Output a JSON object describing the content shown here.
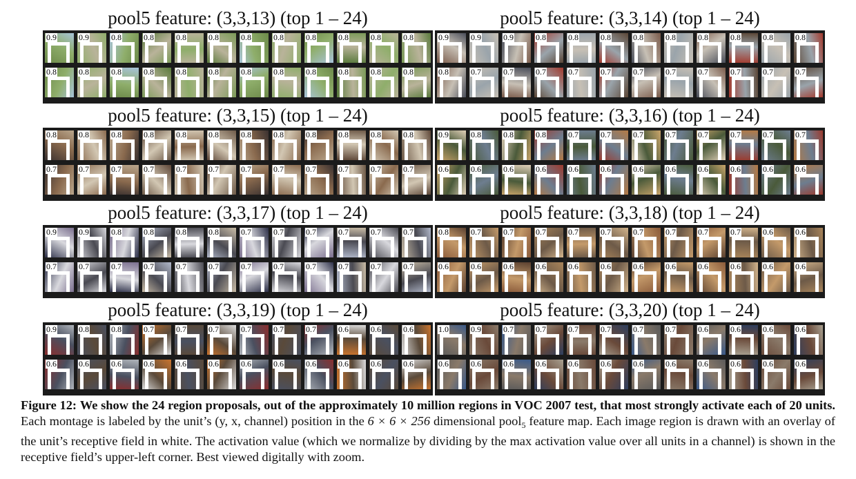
{
  "montages": [
    {
      "title": "pool5 feature: (3,3,13) (top 1 – 24)",
      "values": [
        "0.9",
        "0.9",
        "0.8",
        "0.8",
        "0.8",
        "0.8",
        "0.8",
        "0.8",
        "0.8",
        "0.8",
        "0.8",
        "0.8",
        "0.8",
        "0.8",
        "0.8",
        "0.8",
        "0.8",
        "0.8",
        "0.8",
        "0.8",
        "0.8",
        "0.8",
        "0.8",
        "0.8"
      ],
      "palette": [
        "#6d8a4a",
        "#8fae6b",
        "#a7c3d9",
        "#597a3c",
        "#b9b39a",
        "#7b9a58"
      ]
    },
    {
      "title": "pool5 feature: (3,3,14) (top 1 – 24)",
      "values": [
        "0.9",
        "0.9",
        "0.9",
        "0.8",
        "0.8",
        "0.8",
        "0.8",
        "0.8",
        "0.8",
        "0.8",
        "0.8",
        "0.8",
        "0.8",
        "0.7",
        "0.7",
        "0.7",
        "0.7",
        "0.7",
        "0.7",
        "0.7",
        "0.7",
        "0.7",
        "0.7",
        "0.7"
      ],
      "palette": [
        "#7a5a4a",
        "#c7c0b5",
        "#4a4e5a",
        "#a33a2e",
        "#9aa4ab",
        "#5b4636"
      ]
    },
    {
      "title": "pool5 feature: (3,3,15) (top 1 – 24)",
      "values": [
        "0.8",
        "0.8",
        "0.8",
        "0.8",
        "0.8",
        "0.8",
        "0.8",
        "0.8",
        "0.8",
        "0.8",
        "0.8",
        "0.8",
        "0.7",
        "0.7",
        "0.7",
        "0.7",
        "0.7",
        "0.7",
        "0.7",
        "0.7",
        "0.7",
        "0.7",
        "0.7",
        "0.7"
      ],
      "palette": [
        "#3a3130",
        "#8a6a4e",
        "#b9a68c",
        "#5d4637",
        "#d2c7b3",
        "#6e5a48"
      ]
    },
    {
      "title": "pool5 feature: (3,3,16) (top 1 – 24)",
      "values": [
        "0.9",
        "0.8",
        "0.8",
        "0.8",
        "0.7",
        "0.7",
        "0.7",
        "0.7",
        "0.7",
        "0.7",
        "0.7",
        "0.7",
        "0.6",
        "0.6",
        "0.6",
        "0.6",
        "0.6",
        "0.6",
        "0.6",
        "0.6",
        "0.6",
        "0.6",
        "0.6",
        "0.6"
      ],
      "palette": [
        "#c9a46a",
        "#4a5a3a",
        "#e0d0b8",
        "#9c3a2e",
        "#6d7d8f",
        "#b47a45"
      ]
    },
    {
      "title": "pool5 feature: (3,3,17) (top 1 – 24)",
      "values": [
        "0.9",
        "0.9",
        "0.8",
        "0.8",
        "0.8",
        "0.8",
        "0.7",
        "0.7",
        "0.7",
        "0.7",
        "0.7",
        "0.7",
        "0.7",
        "0.7",
        "0.7",
        "0.7",
        "0.7",
        "0.7",
        "0.7",
        "0.7",
        "0.7",
        "0.7",
        "0.7",
        "0.7"
      ],
      "palette": [
        "#2c2f48",
        "#d9d9de",
        "#7a6e8e",
        "#b0b7c9",
        "#4a4a52",
        "#c9bca6"
      ]
    },
    {
      "title": "pool5 feature: (3,3,18) (top 1 – 24)",
      "values": [
        "0.8",
        "0.7",
        "0.7",
        "0.7",
        "0.7",
        "0.7",
        "0.7",
        "0.7",
        "0.7",
        "0.7",
        "0.6",
        "0.6",
        "0.6",
        "0.6",
        "0.6",
        "0.6",
        "0.6",
        "0.6",
        "0.6",
        "0.6",
        "0.6",
        "0.6",
        "0.6",
        "0.6"
      ],
      "palette": [
        "#8a5a3a",
        "#c49a6a",
        "#5a4030",
        "#a8845a",
        "#6d5a48",
        "#d2b48c"
      ]
    },
    {
      "title": "pool5 feature: (3,3,19) (top 1 – 24)",
      "values": [
        "0.9",
        "0.8",
        "0.8",
        "0.7",
        "0.7",
        "0.7",
        "0.7",
        "0.7",
        "0.7",
        "0.6",
        "0.6",
        "0.6",
        "0.6",
        "0.6",
        "0.6",
        "0.6",
        "0.6",
        "0.6",
        "0.6",
        "0.6",
        "0.6",
        "0.6",
        "0.6",
        "0.6"
      ],
      "palette": [
        "#8a2e2e",
        "#4a5060",
        "#b0b5bb",
        "#c9742e",
        "#5a4a3a",
        "#dcdcdc"
      ]
    },
    {
      "title": "pool5 feature: (3,3,20) (top 1 – 24)",
      "values": [
        "1.0",
        "0.9",
        "0.7",
        "0.7",
        "0.7",
        "0.7",
        "0.7",
        "0.7",
        "0.6",
        "0.6",
        "0.6",
        "0.6",
        "0.6",
        "0.6",
        "0.6",
        "0.6",
        "0.6",
        "0.6",
        "0.6",
        "0.6",
        "0.6",
        "0.6",
        "0.6",
        "0.6"
      ],
      "palette": [
        "#5a5a5a",
        "#8a7a6a",
        "#3a5a8a",
        "#a8a090",
        "#6a4a3a",
        "#2e3e5e"
      ]
    }
  ],
  "caption": {
    "label": "Figure 12:",
    "bold": "We show the 24 region proposals, out of the approximately 10 million regions in VOC 2007 test, that most strongly activate each of 20 units.",
    "text_1": "Each montage is labeled by the unit’s (y, x, channel) position in the",
    "math": "6 × 6 × 256",
    "text_2": "dimensional pool",
    "sub": "5",
    "text_3": "feature map. Each image region is drawn with an overlay of the unit’s receptive field in white. The activation value (which we normalize by dividing by the max activation value over all units in a channel) is shown in the receptive field’s upper-left corner. Best viewed digitally with zoom."
  }
}
